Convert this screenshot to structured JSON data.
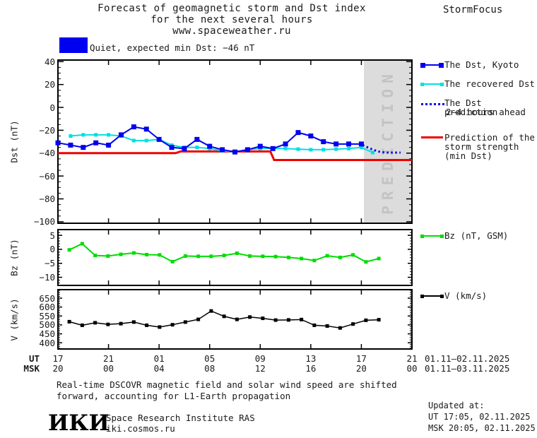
{
  "header": {
    "line1": "Forecast of geomagnetic storm and Dst index",
    "line2": "for the next several hours",
    "line3": "www.spaceweather.ru",
    "brand": "StormFocus"
  },
  "status": {
    "label": "Quiet, expected min Dst: −46 nT",
    "swatch_color": "#0000f0"
  },
  "colors": {
    "kyoto": "#0000f0",
    "recovered": "#00e0e0",
    "prediction": "#0000f0",
    "strength": "#f00000",
    "bz": "#00dd00",
    "v": "#000000",
    "gray_region": "#dcdcdc",
    "watermark": "#c3c3c3",
    "status": "#0000f0"
  },
  "chart_data": [
    {
      "type": "line",
      "name": "dst",
      "ylabel": "Dst (nT)",
      "xlim": [
        0,
        28
      ],
      "ylim_top": 41.4,
      "ylim_bottom": -101.3,
      "y_ticks": [
        40,
        20,
        0,
        -20,
        -40,
        -60,
        -80,
        -100
      ],
      "y_tick_labels": [
        "40",
        "20",
        "0",
        "−20",
        "−40",
        "−60",
        "−80",
        "−100"
      ],
      "y_minor_step": 5,
      "prediction_region": {
        "x_start": 24.2,
        "x_end": 28,
        "label": "PREDICTION",
        "fill": "#dcdcdc",
        "text_color": "#c3c3c3"
      },
      "series": [
        {
          "name": "storm-strength",
          "legend": "Prediction of the storm strength (min Dst)",
          "color": "#f00000",
          "stroke": 3,
          "x": [
            0,
            9.3,
            9.7,
            16.8,
            17.1,
            28
          ],
          "values": [
            -40,
            -40,
            -38.5,
            -38.5,
            -46,
            -46
          ]
        },
        {
          "name": "recovered-dst",
          "legend": "The recovered Dst",
          "color": "#00e0e0",
          "stroke": 2,
          "marker": 5,
          "x": [
            1,
            2,
            3,
            4,
            5,
            6,
            7,
            8,
            9,
            10,
            11,
            12,
            13,
            14,
            15,
            16,
            17,
            18,
            19,
            20,
            21,
            22,
            23,
            24,
            24.9
          ],
          "values": [
            -25,
            -24,
            -24,
            -24,
            -25,
            -29,
            -29,
            -28,
            -33,
            -35,
            -35,
            -36,
            -38,
            -39,
            -37,
            -36,
            -36,
            -36,
            -36.5,
            -37,
            -37,
            -36.5,
            -36,
            -35,
            -39.5
          ]
        },
        {
          "name": "dst-kyoto",
          "legend": "The Dst, Kyoto",
          "color": "#0000f0",
          "stroke": 2,
          "marker": 7,
          "x": [
            0,
            1,
            2,
            3,
            4,
            5,
            6,
            7,
            8,
            9,
            10,
            11,
            12,
            13,
            14,
            15,
            16,
            17,
            18,
            19,
            20,
            21,
            22,
            23,
            24
          ],
          "values": [
            -31,
            -33,
            -35,
            -31,
            -33,
            -24,
            -17,
            -19,
            -28,
            -35,
            -36,
            -28,
            -34,
            -37,
            -39,
            -37,
            -34,
            -36,
            -32,
            -22,
            -25,
            -30,
            -32,
            -32,
            -32
          ]
        },
        {
          "name": "dst-prediction",
          "legend": "The Dst prediction 2–4 hours ahead",
          "color": "#0000f0",
          "stroke": 3,
          "dash": "2.5 3.5",
          "x": [
            24.1,
            24.7,
            25.3,
            25.9,
            26.5,
            27.1
          ],
          "values": [
            -33,
            -36,
            -38.5,
            -39.5,
            -39.5,
            -39.5
          ]
        }
      ]
    },
    {
      "type": "line",
      "name": "bz",
      "ylabel": "Bz (nT)",
      "xlim": [
        0,
        28
      ],
      "ylim_top": 7.05,
      "ylim_bottom": -12.9,
      "y_ticks": [
        5,
        0,
        -5,
        -10
      ],
      "y_tick_labels": [
        "5",
        "0",
        "−5",
        "−10"
      ],
      "y_minor_step": 1,
      "series": [
        {
          "name": "bz-gsm",
          "legend": "Bz (nT, GSM)",
          "color": "#00dd00",
          "stroke": 2,
          "marker": 5,
          "x": [
            0.9,
            1.92,
            2.94,
            3.96,
            4.98,
            6,
            7.02,
            8.04,
            9.06,
            10.08,
            11.1,
            12.12,
            13.14,
            14.16,
            15.18,
            16.2,
            17.22,
            18.24,
            19.26,
            20.28,
            21.3,
            22.32,
            23.34,
            24.36,
            25.38
          ],
          "values": [
            -0.2,
            2,
            -2.2,
            -2.4,
            -1.8,
            -1.3,
            -1.9,
            -2,
            -4.4,
            -2.4,
            -2.5,
            -2.5,
            -2.2,
            -1.4,
            -2.4,
            -2.5,
            -2.6,
            -2.9,
            -3.3,
            -4,
            -2.3,
            -2.9,
            -2,
            -4.5,
            -3.3
          ]
        }
      ]
    },
    {
      "type": "line",
      "name": "v",
      "ylabel": "V (km/s)",
      "xlim": [
        0,
        28
      ],
      "ylim_top": 697.5,
      "ylim_bottom": 365.2,
      "y_ticks": [
        650,
        600,
        550,
        500,
        450,
        400
      ],
      "y_tick_labels": [
        "650",
        "600",
        "550",
        "500",
        "450",
        "400"
      ],
      "y_minor_step": 10,
      "series": [
        {
          "name": "solar-wind-speed",
          "legend": "V (km/s)",
          "color": "#000000",
          "stroke": 1.5,
          "marker": 5,
          "x": [
            0.9,
            1.92,
            2.94,
            3.96,
            4.98,
            6,
            7.02,
            8.04,
            9.06,
            10.08,
            11.1,
            12.12,
            13.14,
            14.16,
            15.18,
            16.2,
            17.22,
            18.24,
            19.26,
            20.28,
            21.3,
            22.32,
            23.34,
            24.36,
            25.38
          ],
          "values": [
            518,
            498,
            512,
            503,
            507,
            516,
            498,
            488,
            501,
            516,
            531,
            578,
            548,
            531,
            544,
            537,
            527,
            528,
            530,
            498,
            494,
            483,
            505,
            526,
            529
          ]
        }
      ]
    }
  ],
  "xaxis": {
    "ut_label": "UT",
    "msk_label": "MSK",
    "ut_hours": [
      "17",
      "21",
      "01",
      "05",
      "09",
      "13",
      "17",
      "21"
    ],
    "msk_hours": [
      "20",
      "00",
      "04",
      "08",
      "12",
      "16",
      "20",
      "00"
    ],
    "ut_range": "01.11–02.11.2025",
    "msk_range": "01.11–03.11.2025"
  },
  "legend": {
    "dst_kyoto": "The Dst, Kyoto",
    "recovered": "The recovered Dst",
    "prediction_l1": "The Dst prediction",
    "prediction_l2": "2–4 hours ahead",
    "strength_l1": "Prediction of the",
    "strength_l2": "storm strength",
    "strength_l3": "(min Dst)",
    "bz": "Bz (nT, GSM)",
    "v": "V (km/s)"
  },
  "footer": {
    "line1": "Real-time DSCOVR magnetic field and solar wind speed are shifted",
    "line2": "forward, accounting for L1-Earth propagation",
    "logo": "ИКИ",
    "institute": "Space Research Institute RAS",
    "site": "iki.cosmos.ru"
  },
  "updated": {
    "heading": "Updated at:",
    "ut": "UT  17:05, 02.11.2025",
    "msk": "MSK 20:05, 02.11.2025"
  }
}
